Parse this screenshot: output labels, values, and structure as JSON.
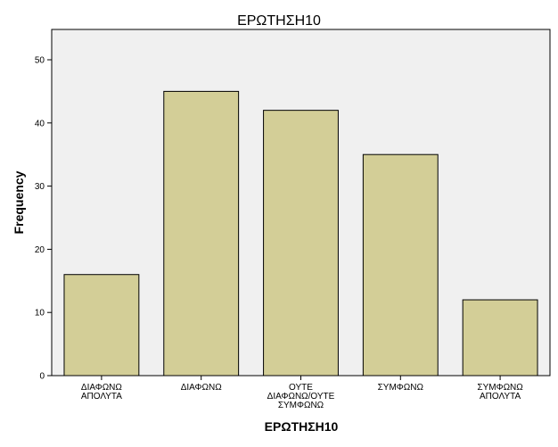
{
  "chart_data": {
    "type": "bar",
    "title": "ΕΡΩΤΗΣΗ10",
    "xlabel": "ΕΡΩΤΗΣΗ10",
    "ylabel": "Frequency",
    "categories": [
      [
        "ΔΙΑΦΩΝΩ",
        "ΑΠΟΛΥΤΑ"
      ],
      [
        "ΔΙΑΦΩΝΩ"
      ],
      [
        "ΟΥΤΕ",
        "ΔΙΑΦΩΝΩ/ΟΥΤΕ",
        "ΣΥΜΦΩΝΩ"
      ],
      [
        "ΣΥΜΦΩΝΩ"
      ],
      [
        "ΣΥΜΦΩΝΩ",
        "ΑΠΟΛΥΤΑ"
      ]
    ],
    "values": [
      16,
      45,
      42,
      35,
      12
    ],
    "ylim": [
      0,
      50
    ],
    "yticks": [
      0,
      10,
      20,
      30,
      40,
      50
    ],
    "grid": false,
    "legend": "none",
    "colors": {
      "plot_background": "#f0f0f0",
      "bar_fill": "#d3ce97",
      "bar_stroke": "#000000"
    }
  }
}
